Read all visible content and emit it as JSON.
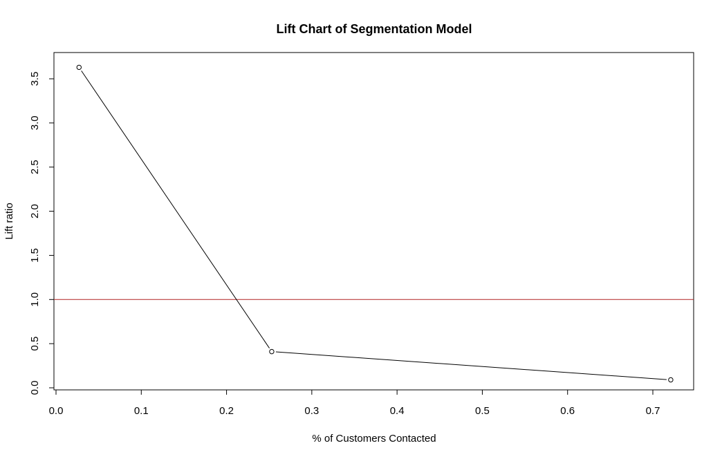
{
  "chart_data": {
    "type": "line",
    "title": "Lift Chart of Segmentation Model",
    "xlabel": "% of Customers Contacted",
    "ylabel": "Lift ratio",
    "xlim": [
      0.0,
      0.75
    ],
    "ylim": [
      0.0,
      3.7
    ],
    "x_ticks": [
      "0.0",
      "0.1",
      "0.2",
      "0.3",
      "0.4",
      "0.5",
      "0.6",
      "0.7"
    ],
    "y_ticks": [
      "0.0",
      "0.5",
      "1.0",
      "1.5",
      "2.0",
      "2.5",
      "3.0",
      "3.5"
    ],
    "grid": false,
    "series": [
      {
        "x": [
          0.027,
          0.253,
          0.721
        ],
        "y": [
          3.63,
          0.41,
          0.09
        ],
        "color": "#000000",
        "markers": "open-circle"
      }
    ],
    "reference_lines": [
      {
        "orientation": "horizontal",
        "y": 1.0,
        "color": "#b22222"
      }
    ]
  }
}
